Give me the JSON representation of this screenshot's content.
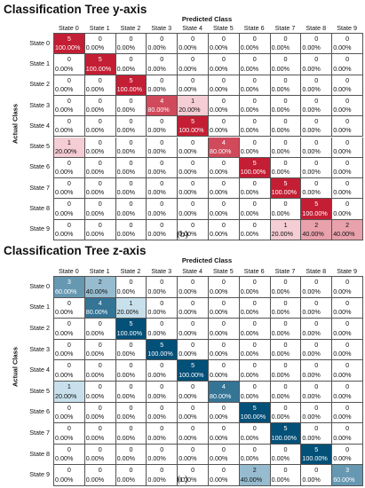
{
  "figure": {
    "caption_b": "(b)",
    "caption_c": "(c)"
  },
  "chart_data": [
    {
      "type": "heatmap",
      "title": "Classification Tree y-axis",
      "xlabel": "Predicted Class",
      "ylabel": "Actual Class",
      "x_categories": [
        "State 0",
        "State 1",
        "State 2",
        "State 3",
        "State 4",
        "State 5",
        "State 6",
        "State 7",
        "State 8",
        "State 9"
      ],
      "y_categories": [
        "State 0",
        "State 1",
        "State 2",
        "State 3",
        "State 4",
        "State 5",
        "State 6",
        "State 7",
        "State 8",
        "State 9"
      ],
      "colormap": "red",
      "counts": [
        [
          5,
          0,
          0,
          0,
          0,
          0,
          0,
          0,
          0,
          0
        ],
        [
          0,
          5,
          0,
          0,
          0,
          0,
          0,
          0,
          0,
          0
        ],
        [
          0,
          0,
          5,
          0,
          0,
          0,
          0,
          0,
          0,
          0
        ],
        [
          0,
          0,
          0,
          4,
          1,
          0,
          0,
          0,
          0,
          0
        ],
        [
          0,
          0,
          0,
          0,
          5,
          0,
          0,
          0,
          0,
          0
        ],
        [
          1,
          0,
          0,
          0,
          0,
          4,
          0,
          0,
          0,
          0
        ],
        [
          0,
          0,
          0,
          0,
          0,
          0,
          5,
          0,
          0,
          0
        ],
        [
          0,
          0,
          0,
          0,
          0,
          0,
          0,
          5,
          0,
          0
        ],
        [
          0,
          0,
          0,
          0,
          0,
          0,
          0,
          0,
          5,
          0
        ],
        [
          0,
          0,
          0,
          0,
          0,
          0,
          0,
          1,
          2,
          2
        ]
      ],
      "percent_labels": [
        [
          "100.00%",
          "0.00%",
          "0.00%",
          "0.00%",
          "0.00%",
          "0.00%",
          "0.00%",
          "0.00%",
          "0.00%",
          "0.00%"
        ],
        [
          "0.00%",
          "100.00%",
          "0.00%",
          "0.00%",
          "0.00%",
          "0.00%",
          "0.00%",
          "0.00%",
          "0.00%",
          "0.00%"
        ],
        [
          "0.00%",
          "0.00%",
          "100.00%",
          "0.00%",
          "0.00%",
          "0.00%",
          "0.00%",
          "0.00%",
          "0.00%",
          "0.00%"
        ],
        [
          "0.00%",
          "0.00%",
          "0.00%",
          "80.00%",
          "20.00%",
          "0.00%",
          "0.00%",
          "0.00%",
          "0.00%",
          "0.00%"
        ],
        [
          "0.00%",
          "0.00%",
          "0.00%",
          "0.00%",
          "100.00%",
          "0.00%",
          "0.00%",
          "0.00%",
          "0.00%",
          "0.00%"
        ],
        [
          "20.00%",
          "0.00%",
          "0.00%",
          "0.00%",
          "0.00%",
          "80.00%",
          "0.00%",
          "0.00%",
          "0.00%",
          "0.00%"
        ],
        [
          "0.00%",
          "0.00%",
          "0.00%",
          "0.00%",
          "0.00%",
          "0.00%",
          "100.00%",
          "0.00%",
          "0.00%",
          "0.00%"
        ],
        [
          "0.00%",
          "0.00%",
          "0.00%",
          "0.00%",
          "0.00%",
          "0.00%",
          "0.00%",
          "100.00%",
          "0.00%",
          "0.00%"
        ],
        [
          "0.00%",
          "0.00%",
          "0.00%",
          "0.00%",
          "0.00%",
          "0.00%",
          "0.00%",
          "0.00%",
          "100.00%",
          "0.00%"
        ],
        [
          "0.00%",
          "0.00%",
          "0.00%",
          "0.00%",
          "0.00%",
          "0.00%",
          "0.00%",
          "20.00%",
          "40.00%",
          "40.00%"
        ]
      ]
    },
    {
      "type": "heatmap",
      "title": "Classification Tree z-axis",
      "xlabel": "Predicted Class",
      "ylabel": "Actual Class",
      "x_categories": [
        "State 0",
        "State 1",
        "State 2",
        "State 3",
        "State 4",
        "State 5",
        "State 6",
        "State 7",
        "State 8",
        "State 9"
      ],
      "y_categories": [
        "State 0",
        "State 1",
        "State 2",
        "State 3",
        "State 4",
        "State 5",
        "State 6",
        "State 7",
        "State 8",
        "State 9"
      ],
      "colormap": "blue",
      "counts": [
        [
          3,
          2,
          0,
          0,
          0,
          0,
          0,
          0,
          0,
          0
        ],
        [
          0,
          4,
          1,
          0,
          0,
          0,
          0,
          0,
          0,
          0
        ],
        [
          0,
          0,
          5,
          0,
          0,
          0,
          0,
          0,
          0,
          0
        ],
        [
          0,
          0,
          0,
          5,
          0,
          0,
          0,
          0,
          0,
          0
        ],
        [
          0,
          0,
          0,
          0,
          5,
          0,
          0,
          0,
          0,
          0
        ],
        [
          1,
          0,
          0,
          0,
          0,
          4,
          0,
          0,
          0,
          0
        ],
        [
          0,
          0,
          0,
          0,
          0,
          0,
          5,
          0,
          0,
          0
        ],
        [
          0,
          0,
          0,
          0,
          0,
          0,
          0,
          5,
          0,
          0
        ],
        [
          0,
          0,
          0,
          0,
          0,
          0,
          0,
          0,
          5,
          0
        ],
        [
          0,
          0,
          0,
          0,
          0,
          0,
          2,
          0,
          0,
          3
        ]
      ],
      "percent_labels": [
        [
          "60.00%",
          "40.00%",
          "0.00%",
          "0.00%",
          "0.00%",
          "0.00%",
          "0.00%",
          "0.00%",
          "0.00%",
          "0.00%"
        ],
        [
          "0.00%",
          "80.00%",
          "20.00%",
          "0.00%",
          "0.00%",
          "0.00%",
          "0.00%",
          "0.00%",
          "0.00%",
          "0.00%"
        ],
        [
          "0.00%",
          "0.00%",
          "100.00%",
          "0.00%",
          "0.00%",
          "0.00%",
          "0.00%",
          "0.00%",
          "0.00%",
          "0.00%"
        ],
        [
          "0.00%",
          "0.00%",
          "0.00%",
          "100.00%",
          "0.00%",
          "0.00%",
          "0.00%",
          "0.00%",
          "0.00%",
          "0.00%"
        ],
        [
          "0.00%",
          "0.00%",
          "0.00%",
          "0.00%",
          "100.00%",
          "0.00%",
          "0.00%",
          "0.00%",
          "0.00%",
          "0.00%"
        ],
        [
          "20.00%",
          "0.00%",
          "0.00%",
          "0.00%",
          "0.00%",
          "80.00%",
          "0.00%",
          "0.00%",
          "0.00%",
          "0.00%"
        ],
        [
          "0.00%",
          "0.00%",
          "0.00%",
          "0.00%",
          "0.00%",
          "0.00%",
          "100.00%",
          "0.00%",
          "0.00%",
          "0.00%"
        ],
        [
          "0.00%",
          "0.00%",
          "0.00%",
          "0.00%",
          "0.00%",
          "0.00%",
          "0.00%",
          "100.00%",
          "0.00%",
          "0.00%"
        ],
        [
          "0.00%",
          "0.00%",
          "0.00%",
          "0.00%",
          "0.00%",
          "0.00%",
          "0.00%",
          "0.00%",
          "100.00%",
          "0.00%"
        ],
        [
          "0.00%",
          "0.00%",
          "0.00%",
          "0.00%",
          "0.00%",
          "0.00%",
          "40.00%",
          "0.00%",
          "0.00%",
          "60.00%"
        ]
      ]
    }
  ]
}
